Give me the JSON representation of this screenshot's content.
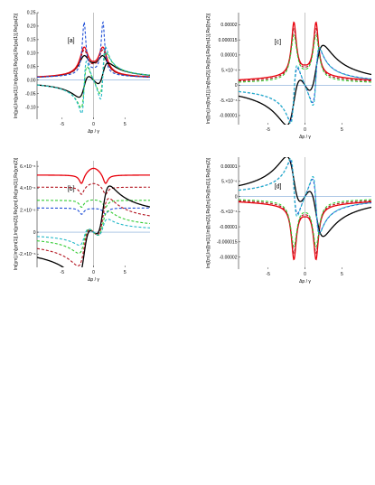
{
  "colors": {
    "black": "#000000",
    "red": "#e8000b",
    "dark_red": "#b3141f",
    "green": "#33cc33",
    "blue": "#1f4fd6",
    "cyan": "#23b8c8",
    "axis_blue": "#7fa7d8"
  },
  "chart_data": [
    {
      "type": "line",
      "panel_label": "[a]",
      "xlabel": "Δp / γ",
      "ylabel": "Im[χa],Im[χa(1)],Im[χa(2)],Re[χa],Re[χa(1)],Re[χa(2)]",
      "xlim": [
        -9,
        9
      ],
      "ylim": [
        -0.145,
        0.25
      ],
      "xticks": [
        -5,
        0,
        5
      ],
      "yticks": [
        -0.1,
        -0.05,
        0.0,
        0.05,
        0.1,
        0.15,
        0.2,
        0.25
      ],
      "ytick_labels": [
        "-0.10",
        "-0.05",
        "0.00",
        "0.05",
        "0.10",
        "0.15",
        "0.20",
        "0.25"
      ],
      "series": [
        {
          "style": "solid",
          "color": "black",
          "kind": "abs",
          "peak": 0.095,
          "base": 0.025,
          "width": 1.0
        },
        {
          "style": "solid",
          "color": "red",
          "kind": "abs",
          "peak": 0.13,
          "base": 0.028,
          "width": 0.8
        },
        {
          "style": "dashed",
          "color": "dark_red",
          "kind": "abs",
          "peak": 0.12,
          "base": 0.026,
          "width": 0.75
        },
        {
          "style": "dashed",
          "color": "blue",
          "kind": "abs",
          "peak": 0.235,
          "base": 0.027,
          "width": 0.35
        },
        {
          "style": "solid",
          "color": "black",
          "kind": "disp",
          "peak": 0.055,
          "width": 0.9
        },
        {
          "style": "dashed",
          "color": "green",
          "kind": "disp",
          "peak": 0.1,
          "width": 0.5
        },
        {
          "style": "dashed",
          "color": "cyan",
          "kind": "disp",
          "peak": 0.125,
          "width": 0.4
        }
      ]
    },
    {
      "type": "line",
      "panel_label": "[c]",
      "xlabel": "Δp / γ",
      "ylabel": "Im[ξm],Im[ξm(1)],Im[ξm(2)],Re[ξm],Re[ξm(1)],Re[ξm(2)]",
      "xlim": [
        -9,
        9
      ],
      "ylim": [
        -1.3e-05,
        2.4e-05
      ],
      "xticks": [
        -5,
        0,
        5
      ],
      "yticks": [
        -1e-05,
        -5e-06,
        0,
        5e-06,
        1e-05,
        1.5e-05,
        2e-05
      ],
      "ytick_labels": [
        "-0.00001",
        "-5.×10⁻⁶",
        "0",
        "5.×10⁻⁶",
        "0.00001",
        "0.000015",
        "0.00002"
      ],
      "series": [
        {
          "style": "solid",
          "color": "red",
          "kind": "abs",
          "peak": 2.3e-05,
          "base": 4.5e-06,
          "width": 0.4
        },
        {
          "style": "dashed",
          "color": "dark_red",
          "kind": "abs",
          "peak": 2.05e-05,
          "base": 3.5e-06,
          "width": 0.45
        },
        {
          "style": "dashed",
          "color": "green",
          "kind": "abs",
          "peak": 1.8e-05,
          "base": 2.5e-06,
          "width": 0.5
        },
        {
          "style": "solid",
          "color": "black",
          "kind": "disp",
          "peak": 1.15e-05,
          "base": 1e-06,
          "width": 1.1
        },
        {
          "style": "dashed",
          "color": "blue",
          "kind": "disp",
          "peak": 1.15e-05,
          "base": 0.0,
          "width": 0.5
        },
        {
          "style": "dashed",
          "color": "cyan",
          "kind": "disp",
          "peak": 1.25e-05,
          "base": 0.0,
          "width": 0.45
        }
      ]
    },
    {
      "type": "line",
      "panel_label": "[b]",
      "xlabel": "Δp / γ",
      "ylabel": "Im[χm],Im[χm(1)],Im[χm(2)],Re[χm],Re[χm(1)],Re[χm(2)]",
      "xlim": [
        -9,
        9
      ],
      "ylim": [
        -3.2e-06,
        6.5e-06
      ],
      "xticks": [
        -5,
        0,
        5
      ],
      "yticks": [
        -2e-06,
        0,
        2e-06,
        4e-06,
        6e-06
      ],
      "ytick_labels": [
        "-2.×10⁻⁶",
        "0",
        "2.×10⁻⁶",
        "4.×10⁻⁶",
        "6.×10⁻⁶"
      ],
      "series": [
        {
          "style": "solid",
          "color": "red",
          "kind": "peaked",
          "level": 5.2e-06,
          "center": 5.9e-06,
          "dip": 1.1e-06
        },
        {
          "style": "dashed",
          "color": "dark_red",
          "kind": "peaked",
          "level": 4.1e-06,
          "center": 4.5e-06,
          "dip": 9e-07
        },
        {
          "style": "dashed",
          "color": "green",
          "kind": "peaked",
          "level": 2.9e-06,
          "center": 3e-06,
          "dip": 8e-07
        },
        {
          "style": "dashed",
          "color": "blue",
          "kind": "peaked",
          "level": 2.2e-06,
          "center": 2.2e-06,
          "dip": 7e-07
        },
        {
          "style": "solid",
          "color": "black",
          "kind": "disp",
          "peak": 2.8e-06,
          "base": -1.2e-06,
          "width": 1.1
        },
        {
          "style": "dashed",
          "color": "dark_red",
          "kind": "disp",
          "peak": 2.2e-06,
          "base": -7e-07,
          "width": 1.0
        },
        {
          "style": "dashed",
          "color": "green",
          "kind": "disp",
          "peak": 1.5e-06,
          "base": -3e-07,
          "width": 0.9
        },
        {
          "style": "dashed",
          "color": "cyan",
          "kind": "disp",
          "peak": 1e-06,
          "base": -1e-07,
          "width": 0.8
        }
      ]
    },
    {
      "type": "line",
      "panel_label": "[d]",
      "xlabel": "Δp / γ",
      "ylabel": "Im[ξm],Im[ξm(1)],Im[ξm(2)],Re[ξm],Re[ξm(1)],Re[ξm(2)]",
      "xlim": [
        -9,
        9
      ],
      "ylim": [
        -2.4e-05,
        1.3e-05
      ],
      "xticks": [
        -5,
        0,
        5
      ],
      "yticks": [
        -2e-05,
        -1.5e-05,
        -1e-05,
        -5e-06,
        0,
        5e-06,
        1e-05
      ],
      "ytick_labels": [
        "-0.00002",
        "-0.000015",
        "-0.00001",
        "-5.×10⁻⁶",
        "0",
        "5.×10⁻⁶",
        "0.00001"
      ],
      "series": [
        {
          "style": "solid",
          "color": "red",
          "kind": "abs",
          "peak": -2.3e-05,
          "base": -4.5e-06,
          "width": 0.4
        },
        {
          "style": "dashed",
          "color": "dark_red",
          "kind": "abs",
          "peak": -2.05e-05,
          "base": -3.5e-06,
          "width": 0.45
        },
        {
          "style": "dashed",
          "color": "green",
          "kind": "abs",
          "peak": -1.8e-05,
          "base": -2.5e-06,
          "width": 0.5
        },
        {
          "style": "solid",
          "color": "black",
          "kind": "disp",
          "peak": -1.15e-05,
          "base": -1e-06,
          "width": 1.1
        },
        {
          "style": "dashed",
          "color": "blue",
          "kind": "disp",
          "peak": -1.15e-05,
          "base": 0.0,
          "width": 0.5
        },
        {
          "style": "dashed",
          "color": "cyan",
          "kind": "disp",
          "peak": -1.25e-05,
          "base": 0.0,
          "width": 0.45
        }
      ]
    }
  ]
}
